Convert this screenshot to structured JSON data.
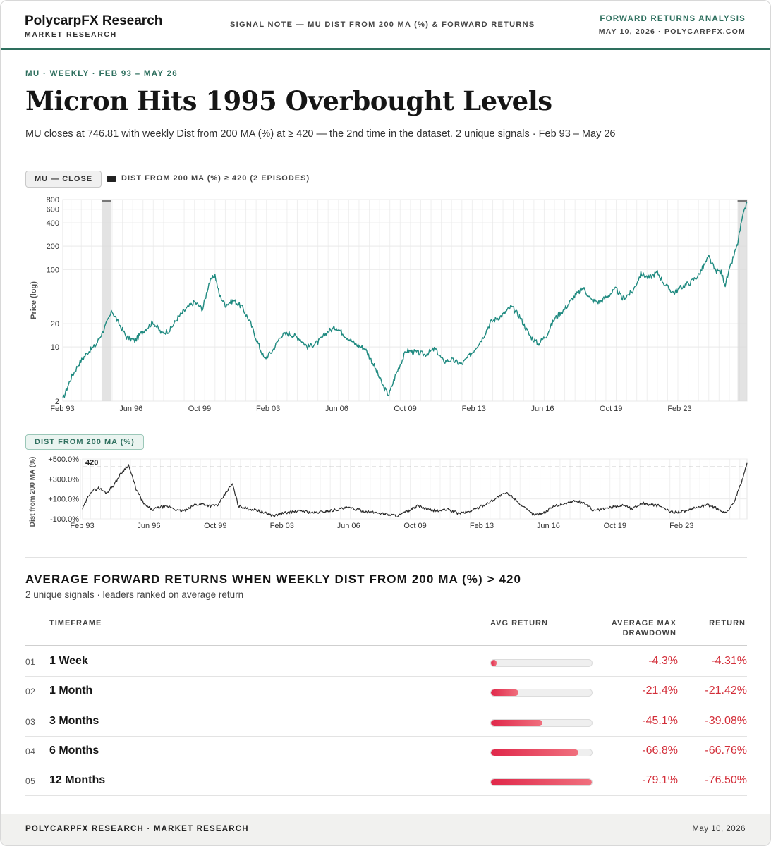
{
  "header": {
    "brand": "PolycarpFX Research",
    "brand_sub": "MARKET RESEARCH ——",
    "center": "SIGNAL NOTE — MU DIST FROM 200 MA (%) & FORWARD RETURNS",
    "right_title": "FORWARD RETURNS ANALYSIS",
    "right_sub": "MAY 10, 2026 · POLYCARPFX.COM"
  },
  "hero": {
    "kicker": "MU · WEEKLY · FEB 93 – MAY 26",
    "title": "Micron Hits 1995 Overbought Levels",
    "subtitle": "MU closes at 746.81 with weekly Dist from 200 MA (%) at ≥ 420 — the 2nd time in the dataset. 2 unique signals · Feb 93 – May 26"
  },
  "colors": {
    "accent": "#2e6f5e",
    "price_line": "#1f8a80",
    "dist_line": "#2a2a2a",
    "negative": "#d32f3a",
    "bar": "#e0284a"
  },
  "chart_data": [
    {
      "type": "line",
      "legend": {
        "series_label": "MU — CLOSE",
        "shade_label": "DIST FROM 200 MA (%) ≥ 420 (2 EPISODES)"
      },
      "ylabel": "Price (log)",
      "y_scale": "log",
      "ylim": [
        2,
        800
      ],
      "y_ticks": [
        2,
        10,
        20,
        100,
        200,
        400,
        600,
        800
      ],
      "x_ticks": [
        "Feb 93",
        "Jun 96",
        "Oct 99",
        "Feb 03",
        "Jun 06",
        "Oct 09",
        "Feb 13",
        "Jun 16",
        "Oct 19",
        "Feb 23"
      ],
      "shaded_episodes": [
        [
          1995.0,
          1995.45
        ],
        [
          2025.9,
          2026.36
        ]
      ],
      "series": [
        {
          "points": [
            [
              1993.1,
              2.1
            ],
            [
              1993.5,
              4.0
            ],
            [
              1993.9,
              6.2
            ],
            [
              1994.3,
              8.5
            ],
            [
              1994.7,
              10.5
            ],
            [
              1995.1,
              17.0
            ],
            [
              1995.5,
              29.0
            ],
            [
              1995.8,
              20.5
            ],
            [
              1996.2,
              13.5
            ],
            [
              1996.6,
              12.0
            ],
            [
              1997.0,
              16.0
            ],
            [
              1997.5,
              21.0
            ],
            [
              1997.9,
              15.0
            ],
            [
              1998.3,
              16.5
            ],
            [
              1998.7,
              24.0
            ],
            [
              1999.1,
              31.0
            ],
            [
              1999.5,
              38.0
            ],
            [
              1999.9,
              31.0
            ],
            [
              2000.2,
              66.0
            ],
            [
              2000.5,
              85.0
            ],
            [
              2000.7,
              48.0
            ],
            [
              2001.0,
              35.0
            ],
            [
              2001.4,
              40.0
            ],
            [
              2001.8,
              33.0
            ],
            [
              2002.2,
              21.0
            ],
            [
              2002.6,
              11.0
            ],
            [
              2002.9,
              7.0
            ],
            [
              2003.3,
              9.0
            ],
            [
              2003.7,
              14.0
            ],
            [
              2004.1,
              15.0
            ],
            [
              2004.6,
              13.0
            ],
            [
              2005.0,
              10.0
            ],
            [
              2005.5,
              11.5
            ],
            [
              2006.0,
              16.0
            ],
            [
              2006.4,
              18.0
            ],
            [
              2006.9,
              13.5
            ],
            [
              2007.3,
              11.0
            ],
            [
              2007.8,
              9.5
            ],
            [
              2008.2,
              6.0
            ],
            [
              2008.7,
              3.0
            ],
            [
              2008.95,
              2.4
            ],
            [
              2009.3,
              4.5
            ],
            [
              2009.8,
              9.0
            ],
            [
              2010.3,
              8.5
            ],
            [
              2010.7,
              8.0
            ],
            [
              2011.2,
              9.5
            ],
            [
              2011.6,
              6.5
            ],
            [
              2012.0,
              6.8
            ],
            [
              2012.5,
              6.0
            ],
            [
              2013.0,
              8.5
            ],
            [
              2013.5,
              13.0
            ],
            [
              2013.9,
              21.0
            ],
            [
              2014.4,
              25.0
            ],
            [
              2014.9,
              33.0
            ],
            [
              2015.3,
              25.0
            ],
            [
              2015.8,
              14.0
            ],
            [
              2016.2,
              11.0
            ],
            [
              2016.6,
              14.0
            ],
            [
              2017.0,
              23.0
            ],
            [
              2017.5,
              31.0
            ],
            [
              2017.9,
              43.0
            ],
            [
              2018.4,
              58.0
            ],
            [
              2018.8,
              40.0
            ],
            [
              2019.2,
              38.0
            ],
            [
              2019.6,
              46.0
            ],
            [
              2020.0,
              56.0
            ],
            [
              2020.3,
              42.0
            ],
            [
              2020.8,
              52.0
            ],
            [
              2021.2,
              88.0
            ],
            [
              2021.6,
              78.0
            ],
            [
              2022.0,
              92.0
            ],
            [
              2022.4,
              62.0
            ],
            [
              2022.8,
              50.0
            ],
            [
              2023.2,
              60.0
            ],
            [
              2023.6,
              68.0
            ],
            [
              2024.0,
              84.0
            ],
            [
              2024.5,
              145.0
            ],
            [
              2024.8,
              98.0
            ],
            [
              2025.1,
              92.0
            ],
            [
              2025.3,
              64.0
            ],
            [
              2025.6,
              118.0
            ],
            [
              2025.9,
              215.0
            ],
            [
              2026.1,
              420.0
            ],
            [
              2026.36,
              746.81
            ]
          ]
        }
      ]
    },
    {
      "type": "line",
      "legend": {
        "series_label": "DIST FROM 200 MA (%)"
      },
      "ylabel": "Dist from 200 MA (%)",
      "ylim": [
        -100,
        500
      ],
      "y_ticks": [
        "+500.0%",
        "+300.0%",
        "+100.0%",
        "-100.0%"
      ],
      "y_tick_values": [
        500,
        300,
        100,
        -100
      ],
      "threshold": {
        "value": 420,
        "label": "420"
      },
      "x_ticks": [
        "Feb 93",
        "Jun 96",
        "Oct 99",
        "Feb 03",
        "Jun 06",
        "Oct 09",
        "Feb 13",
        "Jun 16",
        "Oct 19",
        "Feb 23"
      ],
      "series": [
        {
          "points": [
            [
              1993.1,
              0
            ],
            [
              1993.5,
              170
            ],
            [
              1993.9,
              210
            ],
            [
              1994.3,
              160
            ],
            [
              1994.7,
              250
            ],
            [
              1995.0,
              350
            ],
            [
              1995.4,
              440
            ],
            [
              1995.8,
              190
            ],
            [
              1996.2,
              40
            ],
            [
              1996.6,
              -10
            ],
            [
              1997.0,
              20
            ],
            [
              1997.5,
              20
            ],
            [
              1997.9,
              -20
            ],
            [
              1998.3,
              -15
            ],
            [
              1998.7,
              40
            ],
            [
              1999.1,
              50
            ],
            [
              1999.5,
              30
            ],
            [
              1999.9,
              40
            ],
            [
              2000.3,
              170
            ],
            [
              2000.6,
              250
            ],
            [
              2000.9,
              30
            ],
            [
              2001.4,
              0
            ],
            [
              2001.8,
              -10
            ],
            [
              2002.2,
              -40
            ],
            [
              2002.7,
              -70
            ],
            [
              2003.1,
              -45
            ],
            [
              2003.6,
              -30
            ],
            [
              2004.1,
              -20
            ],
            [
              2004.6,
              -40
            ],
            [
              2005.1,
              -30
            ],
            [
              2005.6,
              -15
            ],
            [
              2006.0,
              0
            ],
            [
              2006.4,
              10
            ],
            [
              2006.9,
              -10
            ],
            [
              2007.4,
              -30
            ],
            [
              2007.9,
              -40
            ],
            [
              2008.4,
              -55
            ],
            [
              2008.9,
              -70
            ],
            [
              2009.4,
              -20
            ],
            [
              2009.9,
              30
            ],
            [
              2010.4,
              -10
            ],
            [
              2010.9,
              -20
            ],
            [
              2011.4,
              -5
            ],
            [
              2011.9,
              -45
            ],
            [
              2012.4,
              -30
            ],
            [
              2012.9,
              10
            ],
            [
              2013.4,
              60
            ],
            [
              2013.9,
              120
            ],
            [
              2014.3,
              160
            ],
            [
              2014.7,
              110
            ],
            [
              2015.2,
              10
            ],
            [
              2015.7,
              -60
            ],
            [
              2016.2,
              -40
            ],
            [
              2016.7,
              30
            ],
            [
              2017.2,
              50
            ],
            [
              2017.7,
              80
            ],
            [
              2018.2,
              60
            ],
            [
              2018.7,
              -20
            ],
            [
              2019.2,
              0
            ],
            [
              2019.7,
              20
            ],
            [
              2020.2,
              40
            ],
            [
              2020.6,
              0
            ],
            [
              2021.1,
              60
            ],
            [
              2021.5,
              40
            ],
            [
              2022.0,
              30
            ],
            [
              2022.5,
              -30
            ],
            [
              2022.9,
              -30
            ],
            [
              2023.4,
              -20
            ],
            [
              2023.9,
              20
            ],
            [
              2024.4,
              40
            ],
            [
              2024.9,
              0
            ],
            [
              2025.3,
              -40
            ],
            [
              2025.7,
              60
            ],
            [
              2026.0,
              220
            ],
            [
              2026.2,
              340
            ],
            [
              2026.36,
              460
            ]
          ]
        }
      ]
    }
  ],
  "table": {
    "title": "AVERAGE FORWARD RETURNS WHEN WEEKLY DIST FROM 200 MA (%) > 420",
    "subtitle": "2 unique signals · leaders ranked on average return",
    "headers": {
      "timeframe": "TIMEFRAME",
      "avg_return": "AVG RETURN",
      "drawdown_1": "AVERAGE MAX",
      "drawdown_2": "DRAWDOWN",
      "return": "RETURN"
    },
    "rows": [
      {
        "rank": "01",
        "timeframe": "1 Week",
        "bar_fraction": 0.054,
        "drawdown": "-4.3%",
        "ret": "-4.31%"
      },
      {
        "rank": "02",
        "timeframe": "1 Month",
        "bar_fraction": 0.27,
        "drawdown": "-21.4%",
        "ret": "-21.42%"
      },
      {
        "rank": "03",
        "timeframe": "3 Months",
        "bar_fraction": 0.51,
        "drawdown": "-45.1%",
        "ret": "-39.08%"
      },
      {
        "rank": "04",
        "timeframe": "6 Months",
        "bar_fraction": 0.87,
        "drawdown": "-66.8%",
        "ret": "-66.76%"
      },
      {
        "rank": "05",
        "timeframe": "12 Months",
        "bar_fraction": 1.0,
        "drawdown": "-79.1%",
        "ret": "-76.50%"
      }
    ]
  },
  "footer": {
    "left": "POLYCARPFX RESEARCH · MARKET RESEARCH",
    "right": "May 10, 2026"
  }
}
